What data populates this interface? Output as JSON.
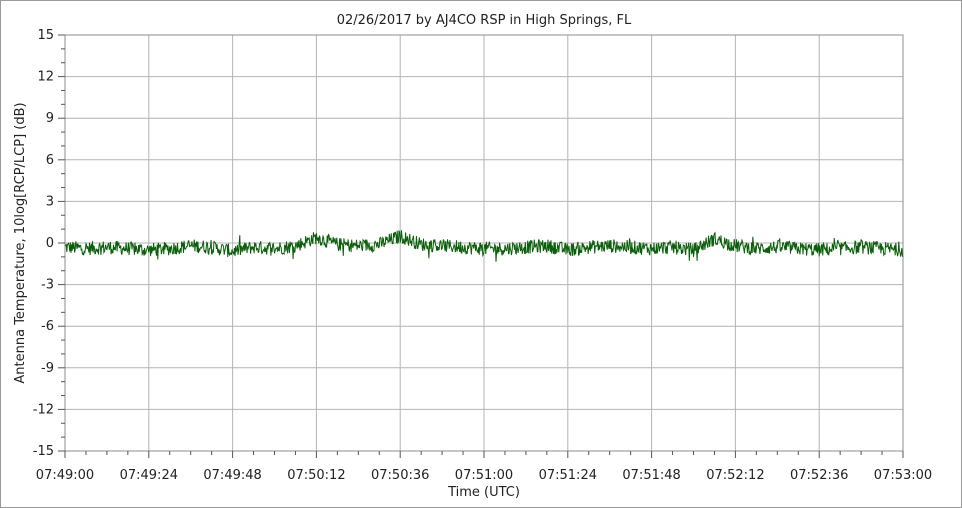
{
  "chart_data": {
    "type": "line",
    "title": "02/26/2017  by  AJ4CO RSP  in  High Springs, FL",
    "xlabel": "Time (UTC)",
    "ylabel": "Antenna Temperature, 10log[RCP/LCP] (dB)",
    "xlim": [
      "07:49:00",
      "07:53:00"
    ],
    "ylim": [
      -15,
      15
    ],
    "x_ticks": [
      "07:49:00",
      "07:49:24",
      "07:49:48",
      "07:50:12",
      "07:50:36",
      "07:51:00",
      "07:51:24",
      "07:51:48",
      "07:52:12",
      "07:52:36",
      "07:53:00"
    ],
    "y_ticks": [
      "15",
      "12",
      "9",
      "6",
      "3",
      "0",
      "-3",
      "-6",
      "-9",
      "-12",
      "-15"
    ],
    "grid": true,
    "legend": "none",
    "series": [
      {
        "color": "#0b5e0b",
        "x": [
          "07:49:00",
          "07:49:06",
          "07:49:12",
          "07:49:18",
          "07:49:24",
          "07:49:30",
          "07:49:36",
          "07:49:42",
          "07:49:48",
          "07:49:54",
          "07:50:00",
          "07:50:06",
          "07:50:12",
          "07:50:18",
          "07:50:24",
          "07:50:30",
          "07:50:36",
          "07:50:42",
          "07:50:48",
          "07:50:54",
          "07:51:00",
          "07:51:06",
          "07:51:12",
          "07:51:18",
          "07:51:24",
          "07:51:30",
          "07:51:36",
          "07:51:42",
          "07:51:48",
          "07:51:54",
          "07:52:00",
          "07:52:06",
          "07:52:12",
          "07:52:18",
          "07:52:24",
          "07:52:30",
          "07:52:36",
          "07:52:42",
          "07:52:48",
          "07:52:54",
          "07:53:00"
        ],
        "values": [
          -0.3,
          -0.4,
          -0.3,
          -0.4,
          -0.5,
          -0.4,
          -0.2,
          -0.3,
          -0.6,
          -0.3,
          -0.4,
          -0.2,
          0.4,
          -0.1,
          -0.2,
          -0.1,
          0.5,
          -0.1,
          -0.2,
          -0.3,
          -0.4,
          -0.4,
          -0.3,
          -0.2,
          -0.5,
          -0.3,
          -0.2,
          -0.3,
          -0.4,
          -0.3,
          -0.5,
          0.3,
          -0.2,
          -0.4,
          -0.3,
          -0.4,
          -0.5,
          -0.4,
          -0.3,
          -0.4,
          -0.5
        ]
      }
    ]
  }
}
